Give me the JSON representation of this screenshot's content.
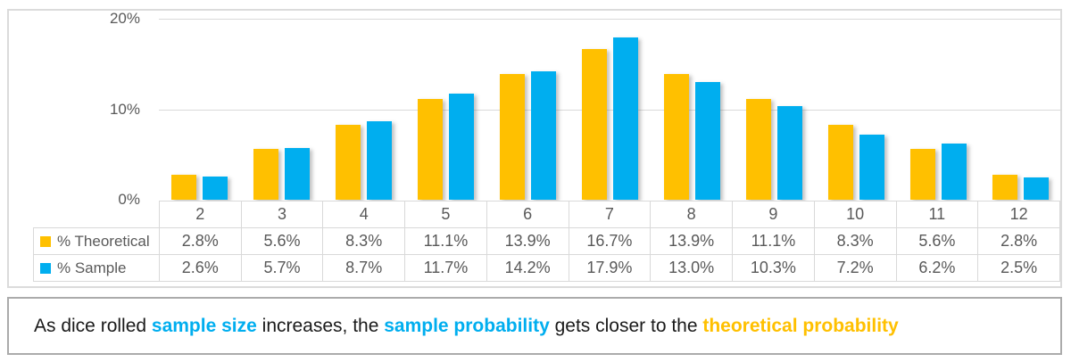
{
  "chart_data": {
    "type": "bar",
    "title": "",
    "xlabel": "",
    "ylabel": "",
    "categories": [
      "2",
      "3",
      "4",
      "5",
      "6",
      "7",
      "8",
      "9",
      "10",
      "11",
      "12"
    ],
    "series": [
      {
        "name": "% Theoretical",
        "color": "#FFC000",
        "values": [
          2.8,
          5.6,
          8.3,
          11.1,
          13.9,
          16.7,
          13.9,
          11.1,
          8.3,
          5.6,
          2.8
        ],
        "display": [
          "2.8%",
          "5.6%",
          "8.3%",
          "11.1%",
          "13.9%",
          "16.7%",
          "13.9%",
          "11.1%",
          "8.3%",
          "5.6%",
          "2.8%"
        ]
      },
      {
        "name": "% Sample",
        "color": "#00AEEF",
        "values": [
          2.6,
          5.7,
          8.7,
          11.7,
          14.2,
          17.9,
          13.0,
          10.3,
          7.2,
          6.2,
          2.5
        ],
        "display": [
          "2.6%",
          "5.7%",
          "8.7%",
          "11.7%",
          "14.2%",
          "17.9%",
          "13.0%",
          "10.3%",
          "7.2%",
          "6.2%",
          "2.5%"
        ]
      }
    ],
    "ylim": [
      0,
      20
    ],
    "yticks": [
      {
        "value": 20,
        "label": "20%"
      },
      {
        "value": 10,
        "label": "10%"
      },
      {
        "value": 0,
        "label": "0%"
      }
    ],
    "grid": true,
    "legend_position": "data-table-left-column",
    "data_table_shown": true
  },
  "caption": {
    "segments": [
      {
        "text": "As dice rolled ",
        "color": "#1a1a1a",
        "bold": false
      },
      {
        "text": "sample size",
        "color": "#00AEEF",
        "bold": true
      },
      {
        "text": " increases, the ",
        "color": "#1a1a1a",
        "bold": false
      },
      {
        "text": "sample probability",
        "color": "#00AEEF",
        "bold": true
      },
      {
        "text": " gets closer to the ",
        "color": "#1a1a1a",
        "bold": false
      },
      {
        "text": "theoretical probability",
        "color": "#FFC000",
        "bold": true
      }
    ]
  },
  "colors": {
    "theoretical": "#FFC000",
    "sample": "#00AEEF",
    "axis_text": "#595959",
    "gridline": "#D9D9D9",
    "chart_border": "#DBDBDB",
    "caption_border": "#ABABAB"
  }
}
